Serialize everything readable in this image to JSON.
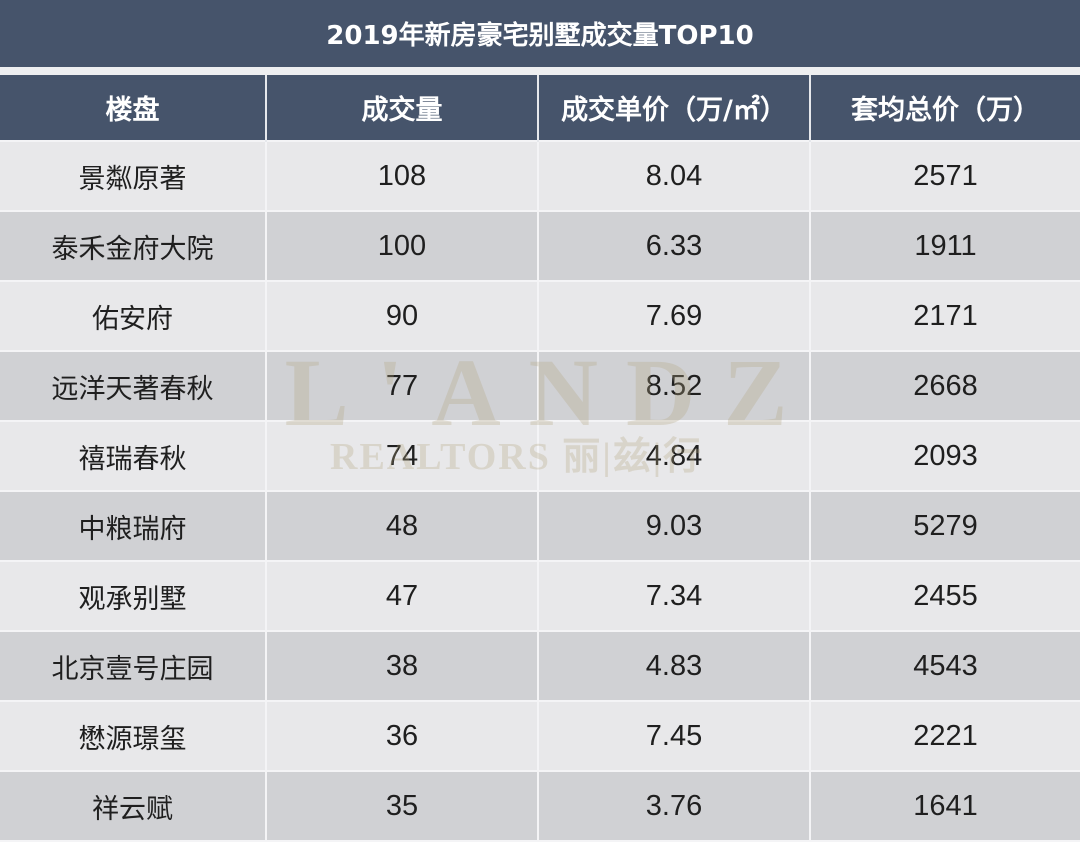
{
  "title": "2019年新房豪宅别墅成交量TOP10",
  "colors": {
    "header_bg": "#46546b",
    "header_text": "#ffffff",
    "row_light": "#e8e8ea",
    "row_dark": "#d0d1d4",
    "watermark": "#b2a680"
  },
  "table": {
    "headers": [
      "楼盘",
      "成交量",
      "成交单价（万/㎡）",
      "套均总价（万）"
    ],
    "rows": [
      {
        "name": "景粼原著",
        "volume": "108",
        "unit_price": "8.04",
        "avg_total": "2571"
      },
      {
        "name": "泰禾金府大院",
        "volume": "100",
        "unit_price": "6.33",
        "avg_total": "1911"
      },
      {
        "name": "佑安府",
        "volume": "90",
        "unit_price": "7.69",
        "avg_total": "2171"
      },
      {
        "name": "远洋天著春秋",
        "volume": "77",
        "unit_price": "8.52",
        "avg_total": "2668"
      },
      {
        "name": "禧瑞春秋",
        "volume": "74",
        "unit_price": "4.84",
        "avg_total": "2093"
      },
      {
        "name": "中粮瑞府",
        "volume": "48",
        "unit_price": "9.03",
        "avg_total": "5279"
      },
      {
        "name": "观承别墅",
        "volume": "47",
        "unit_price": "7.34",
        "avg_total": "2455"
      },
      {
        "name": "北京壹号庄园",
        "volume": "38",
        "unit_price": "4.83",
        "avg_total": "4543"
      },
      {
        "name": "懋源璟玺",
        "volume": "36",
        "unit_price": "7.45",
        "avg_total": "2221"
      },
      {
        "name": "祥云赋",
        "volume": "35",
        "unit_price": "3.76",
        "avg_total": "1641"
      }
    ]
  },
  "watermark": {
    "brand": "L'ANDZ",
    "sub": "REALTORS 丽|兹|行"
  },
  "chart_data": {
    "type": "table",
    "title": "2019年新房豪宅别墅成交量TOP10",
    "columns": [
      "楼盘",
      "成交量",
      "成交单价（万/㎡）",
      "套均总价（万）"
    ],
    "categories": [
      "景粼原著",
      "泰禾金府大院",
      "佑安府",
      "远洋天著春秋",
      "禧瑞春秋",
      "中粮瑞府",
      "观承别墅",
      "北京壹号庄园",
      "懋源璟玺",
      "祥云赋"
    ],
    "series": [
      {
        "name": "成交量",
        "values": [
          108,
          100,
          90,
          77,
          74,
          48,
          47,
          38,
          36,
          35
        ]
      },
      {
        "name": "成交单价（万/㎡）",
        "values": [
          8.04,
          6.33,
          7.69,
          8.52,
          4.84,
          9.03,
          7.34,
          4.83,
          7.45,
          3.76
        ]
      },
      {
        "name": "套均总价（万）",
        "values": [
          2571,
          1911,
          2171,
          2668,
          2093,
          5279,
          2455,
          4543,
          2221,
          1641
        ]
      }
    ]
  }
}
